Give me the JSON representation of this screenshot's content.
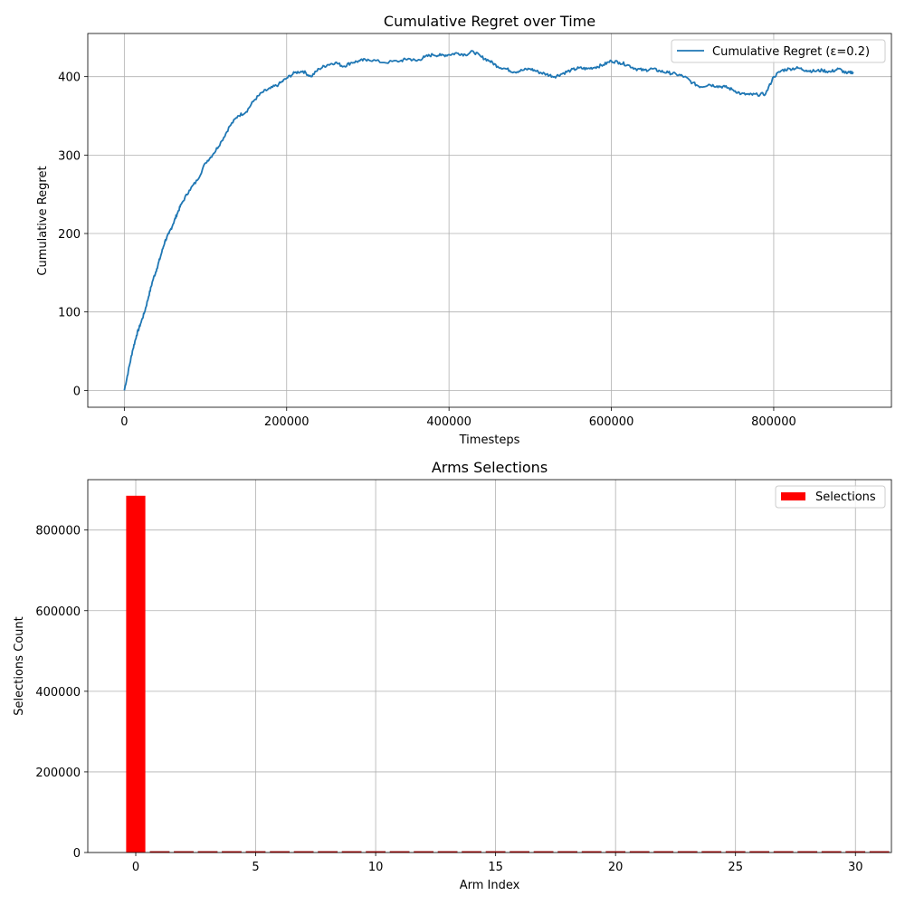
{
  "chart_data": [
    {
      "type": "line",
      "title": "Cumulative Regret over Time",
      "xlabel": "Timesteps",
      "ylabel": "Cumulative Regret",
      "xlim": [
        -45000,
        945000
      ],
      "ylim": [
        -21.5,
        455
      ],
      "xticks": [
        0,
        200000,
        400000,
        600000,
        800000
      ],
      "yticks": [
        0,
        100,
        200,
        300,
        400
      ],
      "grid": true,
      "legend_position": "upper right",
      "color": "#1f77b4",
      "series": [
        {
          "name": "Cumulative Regret (ε=0.2)",
          "x": [
            0,
            5000,
            10000,
            15000,
            20000,
            25000,
            30000,
            35000,
            40000,
            45000,
            50000,
            55000,
            60000,
            65000,
            70000,
            80000,
            90000,
            100000,
            110000,
            120000,
            130000,
            140000,
            150000,
            160000,
            170000,
            180000,
            190000,
            200000,
            210000,
            220000,
            230000,
            240000,
            250000,
            260000,
            270000,
            280000,
            290000,
            300000,
            320000,
            340000,
            350000,
            360000,
            370000,
            380000,
            390000,
            400000,
            410000,
            420000,
            430000,
            440000,
            450000,
            460000,
            470000,
            480000,
            490000,
            500000,
            510000,
            520000,
            530000,
            540000,
            550000,
            560000,
            570000,
            580000,
            590000,
            600000,
            610000,
            620000,
            630000,
            640000,
            650000,
            660000,
            670000,
            680000,
            690000,
            700000,
            710000,
            720000,
            730000,
            740000,
            750000,
            760000,
            770000,
            780000,
            790000,
            800000,
            810000,
            820000,
            830000,
            840000,
            850000,
            860000,
            870000,
            880000,
            890000,
            898000
          ],
          "y": [
            0,
            25,
            50,
            70,
            85,
            100,
            120,
            140,
            155,
            172,
            190,
            200,
            212,
            225,
            237,
            255,
            268,
            290,
            302,
            318,
            337,
            350,
            355,
            370,
            380,
            385,
            390,
            398,
            405,
            407,
            400,
            410,
            415,
            418,
            413,
            418,
            420,
            422,
            418,
            420,
            423,
            420,
            425,
            428,
            427,
            428,
            430,
            428,
            432,
            425,
            420,
            413,
            410,
            406,
            408,
            410,
            406,
            403,
            400,
            404,
            408,
            411,
            410,
            412,
            415,
            420,
            418,
            415,
            410,
            408,
            410,
            407,
            405,
            403,
            400,
            392,
            387,
            390,
            388,
            387,
            383,
            378,
            377,
            377,
            378,
            400,
            408,
            410,
            411,
            408,
            407,
            408,
            406,
            410,
            404,
            406
          ]
        }
      ]
    },
    {
      "type": "bar",
      "title": "Arms Selections",
      "xlabel": "Arm Index",
      "ylabel": "Selections Count",
      "xlim": [
        -2,
        31.5
      ],
      "ylim": [
        0,
        925000
      ],
      "xticks": [
        0,
        5,
        10,
        15,
        20,
        25,
        30
      ],
      "yticks": [
        0,
        200000,
        400000,
        600000,
        800000
      ],
      "grid": true,
      "legend_position": "upper right",
      "color": "#ff0000",
      "categories": [
        0,
        1,
        2,
        3,
        4,
        5,
        6,
        7,
        8,
        9,
        10,
        11,
        12,
        13,
        14,
        15,
        16,
        17,
        18,
        19,
        20,
        21,
        22,
        23,
        24,
        25,
        26,
        27,
        28,
        29,
        30,
        31
      ],
      "series": [
        {
          "name": "Selections",
          "values": [
            885000,
            700,
            700,
            700,
            700,
            700,
            700,
            700,
            700,
            700,
            700,
            700,
            700,
            700,
            700,
            700,
            700,
            700,
            700,
            700,
            700,
            700,
            700,
            700,
            700,
            700,
            700,
            700,
            700,
            700,
            700,
            700
          ]
        }
      ]
    }
  ]
}
